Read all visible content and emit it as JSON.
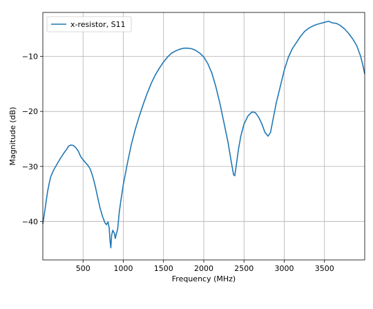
{
  "chart_data": {
    "type": "line",
    "title": "",
    "xlabel": "Frequency (MHz)",
    "ylabel": "Magnitude (dB)",
    "xlim": [
      0,
      4000
    ],
    "ylim": [
      -47,
      -2
    ],
    "x_ticks": [
      500,
      1000,
      1500,
      2000,
      2500,
      3000,
      3500
    ],
    "y_ticks": [
      -40,
      -30,
      -20,
      -10
    ],
    "grid": true,
    "legend_position": "top-left",
    "series": [
      {
        "name": "x-resistor, S11",
        "color": "#1f77b4",
        "points": [
          [
            0,
            -40.5
          ],
          [
            20,
            -38.5
          ],
          [
            40,
            -36.5
          ],
          [
            60,
            -34.5
          ],
          [
            80,
            -33
          ],
          [
            100,
            -31.8
          ],
          [
            140,
            -30.5
          ],
          [
            180,
            -29.5
          ],
          [
            220,
            -28.5
          ],
          [
            260,
            -27.6
          ],
          [
            300,
            -26.8
          ],
          [
            320,
            -26.3
          ],
          [
            350,
            -26.1
          ],
          [
            380,
            -26.2
          ],
          [
            410,
            -26.6
          ],
          [
            440,
            -27.2
          ],
          [
            470,
            -28.2
          ],
          [
            500,
            -28.8
          ],
          [
            530,
            -29.3
          ],
          [
            560,
            -29.8
          ],
          [
            590,
            -30.5
          ],
          [
            620,
            -31.8
          ],
          [
            650,
            -33.5
          ],
          [
            680,
            -35.5
          ],
          [
            710,
            -37.5
          ],
          [
            740,
            -39
          ],
          [
            770,
            -40.2
          ],
          [
            790,
            -40.6
          ],
          [
            810,
            -40.1
          ],
          [
            825,
            -41.2
          ],
          [
            835,
            -43.5
          ],
          [
            845,
            -44.8
          ],
          [
            855,
            -42.5
          ],
          [
            870,
            -41.6
          ],
          [
            890,
            -42.2
          ],
          [
            900,
            -43.1
          ],
          [
            915,
            -42.2
          ],
          [
            930,
            -41.4
          ],
          [
            950,
            -38.3
          ],
          [
            970,
            -36.2
          ],
          [
            1000,
            -33.3
          ],
          [
            1050,
            -29.5
          ],
          [
            1100,
            -26
          ],
          [
            1150,
            -23.2
          ],
          [
            1200,
            -20.8
          ],
          [
            1250,
            -18.6
          ],
          [
            1300,
            -16.6
          ],
          [
            1350,
            -14.8
          ],
          [
            1400,
            -13.3
          ],
          [
            1450,
            -12.1
          ],
          [
            1500,
            -11
          ],
          [
            1550,
            -10.1
          ],
          [
            1600,
            -9.4
          ],
          [
            1650,
            -9
          ],
          [
            1700,
            -8.7
          ],
          [
            1750,
            -8.5
          ],
          [
            1800,
            -8.5
          ],
          [
            1850,
            -8.6
          ],
          [
            1900,
            -8.9
          ],
          [
            1950,
            -9.4
          ],
          [
            2000,
            -10.1
          ],
          [
            2050,
            -11.3
          ],
          [
            2100,
            -13
          ],
          [
            2150,
            -15.5
          ],
          [
            2200,
            -18.5
          ],
          [
            2250,
            -22
          ],
          [
            2300,
            -25.5
          ],
          [
            2340,
            -29
          ],
          [
            2370,
            -31.5
          ],
          [
            2385,
            -31.7
          ],
          [
            2400,
            -30.2
          ],
          [
            2430,
            -27
          ],
          [
            2460,
            -24.5
          ],
          [
            2500,
            -22.3
          ],
          [
            2550,
            -20.8
          ],
          [
            2600,
            -20.1
          ],
          [
            2640,
            -20.2
          ],
          [
            2680,
            -21
          ],
          [
            2720,
            -22.2
          ],
          [
            2760,
            -23.8
          ],
          [
            2800,
            -24.5
          ],
          [
            2830,
            -23.8
          ],
          [
            2860,
            -21.5
          ],
          [
            2900,
            -18.5
          ],
          [
            2950,
            -15.5
          ],
          [
            3000,
            -12.5
          ],
          [
            3050,
            -10.2
          ],
          [
            3100,
            -8.6
          ],
          [
            3150,
            -7.5
          ],
          [
            3200,
            -6.4
          ],
          [
            3250,
            -5.5
          ],
          [
            3300,
            -4.9
          ],
          [
            3350,
            -4.5
          ],
          [
            3400,
            -4.2
          ],
          [
            3450,
            -4
          ],
          [
            3500,
            -3.8
          ],
          [
            3550,
            -3.6
          ],
          [
            3600,
            -3.9
          ],
          [
            3650,
            -4
          ],
          [
            3700,
            -4.4
          ],
          [
            3750,
            -5
          ],
          [
            3800,
            -5.8
          ],
          [
            3850,
            -6.8
          ],
          [
            3900,
            -8
          ],
          [
            3950,
            -10
          ],
          [
            3980,
            -11.8
          ],
          [
            4000,
            -13.2
          ]
        ]
      }
    ]
  }
}
